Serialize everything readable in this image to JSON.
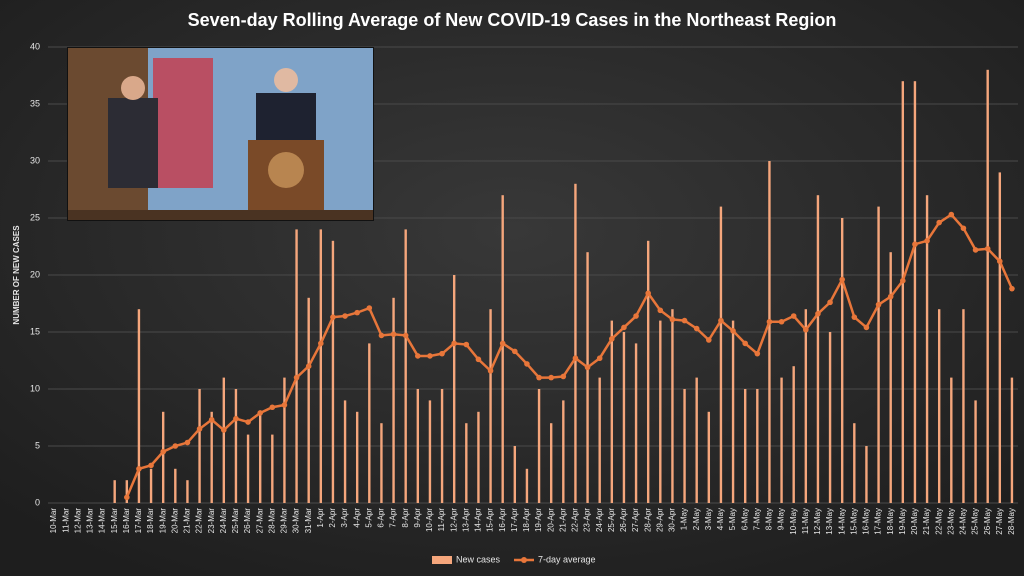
{
  "chart_data": {
    "type": "bar_line",
    "title": "Seven-day Rolling Average of New COVID-19 Cases in the Northeast Region",
    "y_label": "NUMBER OF NEW CASES",
    "categories": [
      "10-Mar",
      "11-Mar",
      "12-Mar",
      "13-Mar",
      "14-Mar",
      "15-Mar",
      "16-Mar",
      "17-Mar",
      "18-Mar",
      "19-Mar",
      "20-Mar",
      "21-Mar",
      "22-Mar",
      "23-Mar",
      "24-Mar",
      "25-Mar",
      "26-Mar",
      "27-Mar",
      "28-Mar",
      "29-Mar",
      "30-Mar",
      "31-Mar",
      "1-Apr",
      "2-Apr",
      "3-Apr",
      "4-Apr",
      "5-Apr",
      "6-Apr",
      "7-Apr",
      "8-Apr",
      "9-Apr",
      "10-Apr",
      "11-Apr",
      "12-Apr",
      "13-Apr",
      "14-Apr",
      "15-Apr",
      "16-Apr",
      "17-Apr",
      "18-Apr",
      "19-Apr",
      "20-Apr",
      "21-Apr",
      "22-Apr",
      "23-Apr",
      "24-Apr",
      "25-Apr",
      "26-Apr",
      "27-Apr",
      "28-Apr",
      "29-Apr",
      "30-Apr",
      "1-May",
      "2-May",
      "3-May",
      "4-May",
      "5-May",
      "6-May",
      "7-May",
      "8-May",
      "9-May",
      "10-May",
      "11-May",
      "12-May",
      "13-May",
      "14-May",
      "15-May",
      "16-May",
      "17-May",
      "18-May",
      "19-May",
      "20-May",
      "21-May",
      "22-May",
      "23-May",
      "24-May",
      "25-May",
      "26-May",
      "27-May",
      "28-May"
    ],
    "series": [
      {
        "name": "New cases",
        "kind": "bar",
        "color": "#f5a67c",
        "values": [
          0,
          0,
          0,
          0,
          0,
          2,
          2,
          17,
          3,
          8,
          3,
          2,
          10,
          8,
          11,
          10,
          6,
          8,
          6,
          11,
          24,
          18,
          24,
          23,
          9,
          8,
          14,
          7,
          18,
          24,
          10,
          9,
          10,
          20,
          7,
          8,
          17,
          27,
          5,
          3,
          10,
          7,
          9,
          28,
          22,
          11,
          16,
          15,
          14,
          23,
          16,
          17,
          10,
          11,
          8,
          26,
          16,
          10,
          10,
          30,
          11,
          12,
          17,
          27,
          15,
          25,
          7,
          5,
          26,
          22,
          37,
          37,
          27,
          17,
          11,
          17,
          9,
          38,
          29,
          11
        ]
      },
      {
        "name": "7-day average",
        "kind": "line",
        "color": "#e8763a",
        "values": [
          null,
          null,
          null,
          null,
          null,
          null,
          0.5,
          3,
          3.3,
          4.5,
          5,
          5.3,
          6.5,
          7.3,
          6.4,
          7.4,
          7.1,
          7.9,
          8.4,
          8.6,
          11,
          12,
          14,
          16.3,
          16.4,
          16.7,
          17.1,
          14.7,
          14.8,
          14.7,
          12.9,
          12.9,
          13.1,
          14,
          13.9,
          12.6,
          11.6,
          14,
          13.3,
          12.2,
          11,
          11,
          11.1,
          12.7,
          11.9,
          12.7,
          14.4,
          15.4,
          16.4,
          18.4,
          16.9,
          16.1,
          16,
          15.3,
          14.3,
          16,
          15.1,
          14,
          13.1,
          15.9,
          15.9,
          16.4,
          15.2,
          16.6,
          17.6,
          19.6,
          16.3,
          15.4,
          17.4,
          18.1,
          19.5,
          22.7,
          23,
          24.6,
          25.3,
          24.1,
          22.2,
          22.3,
          21.2,
          18.8
        ]
      }
    ],
    "ylim": [
      0,
      40
    ],
    "yticks": [
      0,
      5,
      10,
      15,
      20,
      25,
      30,
      35,
      40
    ],
    "grid": true,
    "legend": "bottom"
  }
}
